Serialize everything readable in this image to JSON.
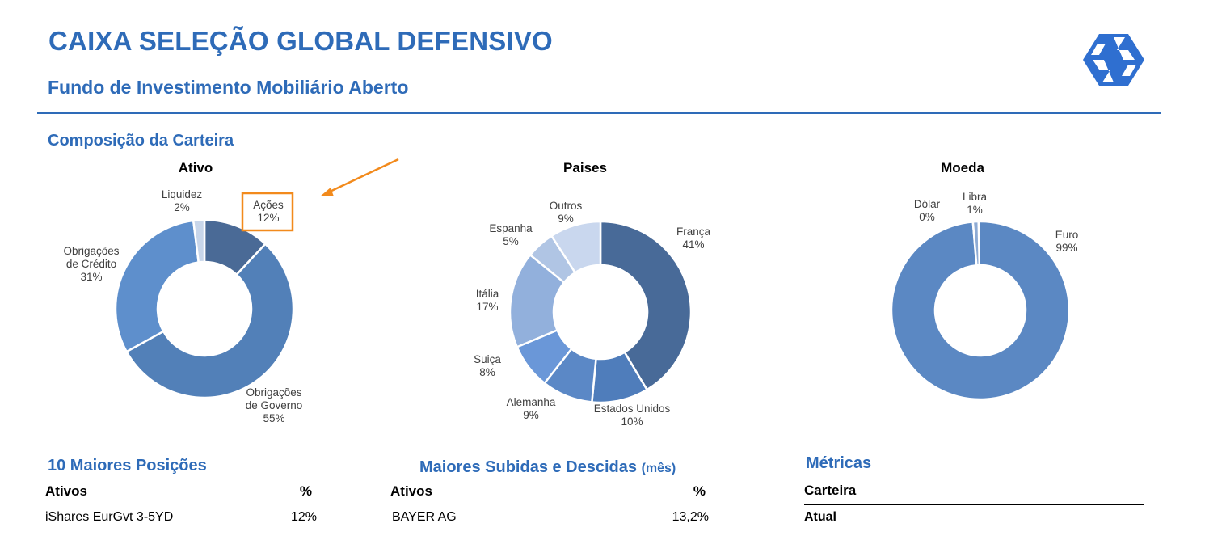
{
  "header": {
    "title": "CAIXA SELEÇÃO GLOBAL DEFENSIVO",
    "subtitle": "Fundo de Investimento Mobiliário Aberto",
    "accent_color": "#2e6bb8",
    "logo_icon": "cgd-logo-icon"
  },
  "composition": {
    "section_title": "Composição da Carteira",
    "highlight_color": "#f28a1c"
  },
  "chart_data": [
    {
      "type": "pie",
      "title": "Ativo",
      "slices": [
        {
          "label": "Ações",
          "value": 12,
          "display": "12%",
          "color": "#4a6a96"
        },
        {
          "label": "Obrigações de Governo",
          "value": 55,
          "display": "55%",
          "color": "#5280b8"
        },
        {
          "label": "Obrigações de Crédito",
          "value": 31,
          "display": "31%",
          "color": "#5e8fcc"
        },
        {
          "label": "Liquidez",
          "value": 2,
          "display": "2%",
          "color": "#c8d6ea"
        }
      ]
    },
    {
      "type": "pie",
      "title": "Paises",
      "slices": [
        {
          "label": "França",
          "value": 41,
          "display": "41%",
          "color": "#486a98"
        },
        {
          "label": "Estados Unidos",
          "value": 10,
          "display": "10%",
          "color": "#4f7dbb"
        },
        {
          "label": "Alemanha",
          "value": 9,
          "display": "9%",
          "color": "#5b88c6"
        },
        {
          "label": "Suiça",
          "value": 8,
          "display": "8%",
          "color": "#6a97d8"
        },
        {
          "label": "Itália",
          "value": 17,
          "display": "17%",
          "color": "#92b0dc"
        },
        {
          "label": "Espanha",
          "value": 5,
          "display": "5%",
          "color": "#b0c5e4"
        },
        {
          "label": "Outros",
          "value": 9,
          "display": "9%",
          "color": "#c9d7ee"
        }
      ]
    },
    {
      "type": "pie",
      "title": "Moeda",
      "slices": [
        {
          "label": "Euro",
          "value": 99,
          "display": "99%",
          "color": "#5b88c3"
        },
        {
          "label": "Dólar",
          "value": 0,
          "display": "0%",
          "color": "#44699a"
        },
        {
          "label": "Libra",
          "value": 1,
          "display": "1%",
          "color": "#8eabd4"
        }
      ]
    }
  ],
  "top_positions": {
    "section_title": "10 Maiores Posições",
    "col_asset": "Ativos",
    "col_pct": "%",
    "rows": [
      {
        "asset": "iShares EurGvt 3-5YD",
        "pct": "12%"
      }
    ]
  },
  "movers": {
    "section_title": "Maiores Subidas e Descidas",
    "section_title_suffix": "(mês)",
    "col_asset": "Ativos",
    "col_pct": "%",
    "rows": [
      {
        "asset": "BAYER AG",
        "pct": "13,2%"
      }
    ]
  },
  "metrics": {
    "section_title": "Métricas",
    "col_portfolio": "Carteira",
    "row_current": "Atual"
  }
}
